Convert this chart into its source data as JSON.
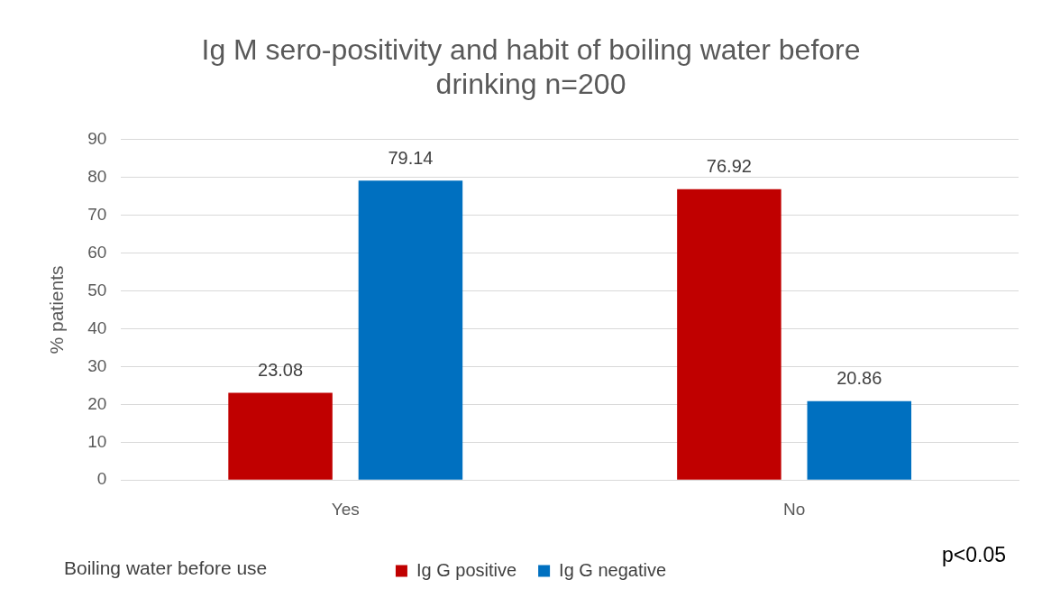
{
  "chart_data": {
    "type": "bar",
    "title": [
      "Ig M sero-positivity and habit of boiling water before",
      "drinking n=200"
    ],
    "xlabel": "Boiling water before use",
    "ylabel": "% patients",
    "categories": [
      "Yes",
      "No"
    ],
    "series": [
      {
        "name": "Ig G positive",
        "color": "#c00000",
        "values": [
          23.08,
          76.92
        ]
      },
      {
        "name": "Ig G negative",
        "color": "#0070c0",
        "values": [
          79.14,
          20.86
        ]
      }
    ],
    "ylim": [
      0,
      90
    ],
    "yticks": [
      0,
      10,
      20,
      30,
      40,
      50,
      60,
      70,
      80,
      90
    ],
    "grid": "y",
    "legend": "bottom",
    "data_labels": true,
    "annotations": [
      "p<0.05"
    ]
  }
}
